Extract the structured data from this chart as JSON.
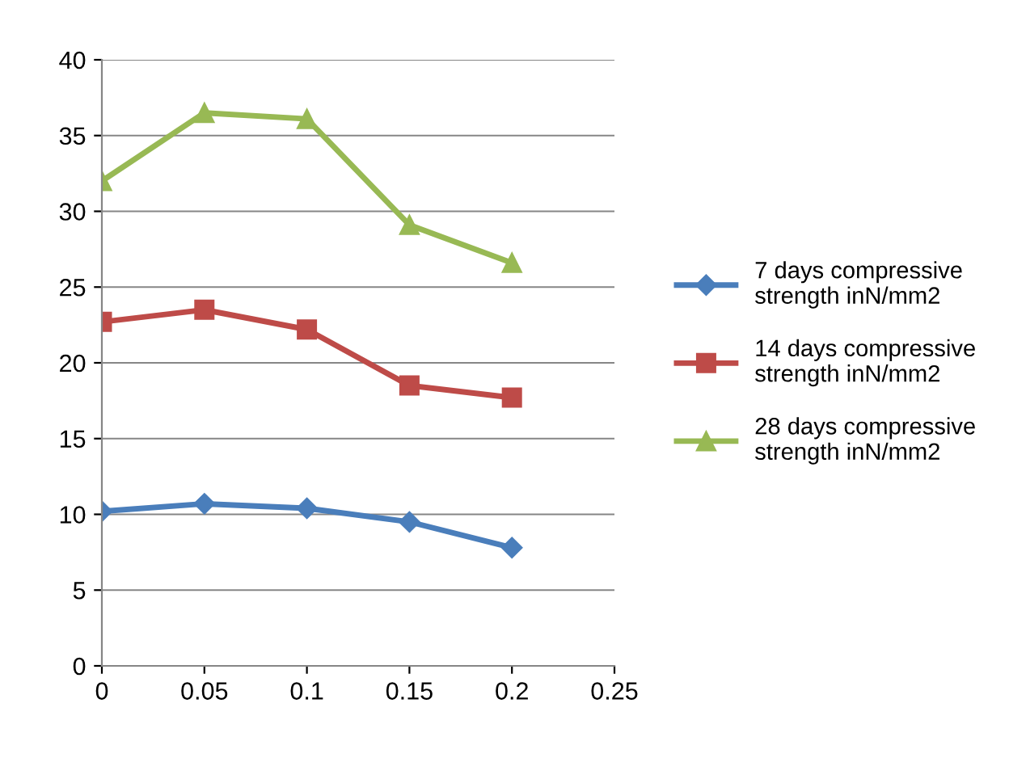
{
  "chart_data": {
    "type": "line",
    "x": [
      0,
      0.05,
      0.1,
      0.15,
      0.2
    ],
    "series": [
      {
        "name": "7 days compressive\nstrength inN/mm2",
        "color": "#4a7ebb",
        "marker": "diamond",
        "values": [
          10.2,
          10.7,
          10.4,
          9.5,
          7.8
        ]
      },
      {
        "name": "14 days compressive\nstrength inN/mm2",
        "color": "#be4b48",
        "marker": "square",
        "values": [
          22.7,
          23.5,
          22.2,
          18.5,
          17.7
        ]
      },
      {
        "name": "28 days compressive\nstrength inN/mm2",
        "color": "#98b954",
        "marker": "triangle",
        "values": [
          32,
          36.5,
          36.1,
          29.1,
          26.6
        ]
      }
    ],
    "xlim": [
      0,
      0.25
    ],
    "xticks": [
      0,
      0.05,
      0.1,
      0.15,
      0.2,
      0.25
    ],
    "ylim": [
      0,
      40
    ],
    "yticks": [
      0,
      5,
      10,
      15,
      20,
      25,
      30,
      35,
      40
    ],
    "grid": "y",
    "legend": "right",
    "line_style": "solid"
  }
}
